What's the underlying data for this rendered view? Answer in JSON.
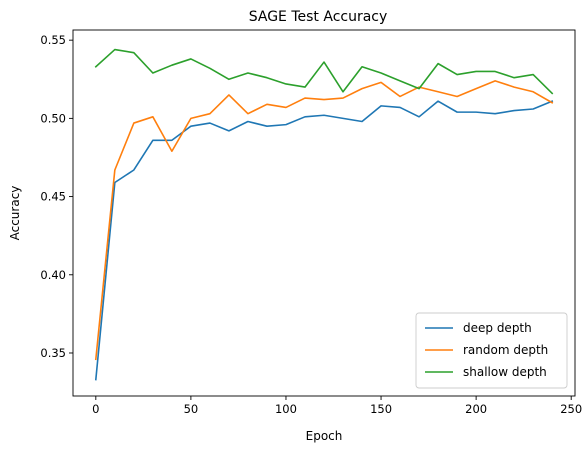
{
  "chart_data": {
    "type": "line",
    "title": "SAGE Test Accuracy",
    "xlabel": "Epoch",
    "ylabel": "Accuracy",
    "xlim": [
      -12,
      252
    ],
    "ylim": [
      0.3225,
      0.5565
    ],
    "xticks": [
      0,
      50,
      100,
      150,
      200,
      250
    ],
    "yticks": [
      0.35,
      0.4,
      0.45,
      0.5,
      0.55
    ],
    "xtick_labels": [
      "0",
      "50",
      "100",
      "150",
      "200",
      "250"
    ],
    "ytick_labels": [
      "0.35",
      "0.40",
      "0.45",
      "0.50",
      "0.55"
    ],
    "grid": false,
    "legend_position": "lower-right",
    "x": [
      0,
      10,
      20,
      30,
      40,
      50,
      60,
      70,
      80,
      90,
      100,
      110,
      120,
      130,
      140,
      150,
      160,
      170,
      180,
      190,
      200,
      210,
      220,
      230,
      240
    ],
    "series": [
      {
        "name": "deep depth",
        "color": "#1f77b4",
        "values": [
          0.333,
          0.459,
          0.467,
          0.486,
          0.486,
          0.495,
          0.497,
          0.492,
          0.498,
          0.495,
          0.496,
          0.501,
          0.502,
          0.5,
          0.498,
          0.508,
          0.507,
          0.501,
          0.511,
          0.504,
          0.504,
          0.503,
          0.505,
          0.506,
          0.511
        ]
      },
      {
        "name": "random depth",
        "color": "#ff7f0e",
        "values": [
          0.346,
          0.467,
          0.497,
          0.501,
          0.479,
          0.5,
          0.503,
          0.515,
          0.503,
          0.509,
          0.507,
          0.513,
          0.512,
          0.513,
          0.519,
          0.523,
          0.514,
          0.52,
          0.517,
          0.514,
          0.519,
          0.524,
          0.52,
          0.517,
          0.51
        ]
      },
      {
        "name": "shallow depth",
        "color": "#2ca02c",
        "values": [
          0.533,
          0.544,
          0.542,
          0.529,
          0.534,
          0.538,
          0.532,
          0.525,
          0.529,
          0.526,
          0.522,
          0.52,
          0.536,
          0.517,
          0.533,
          0.529,
          0.524,
          0.519,
          0.535,
          0.528,
          0.53,
          0.53,
          0.526,
          0.528,
          0.516
        ]
      }
    ]
  }
}
